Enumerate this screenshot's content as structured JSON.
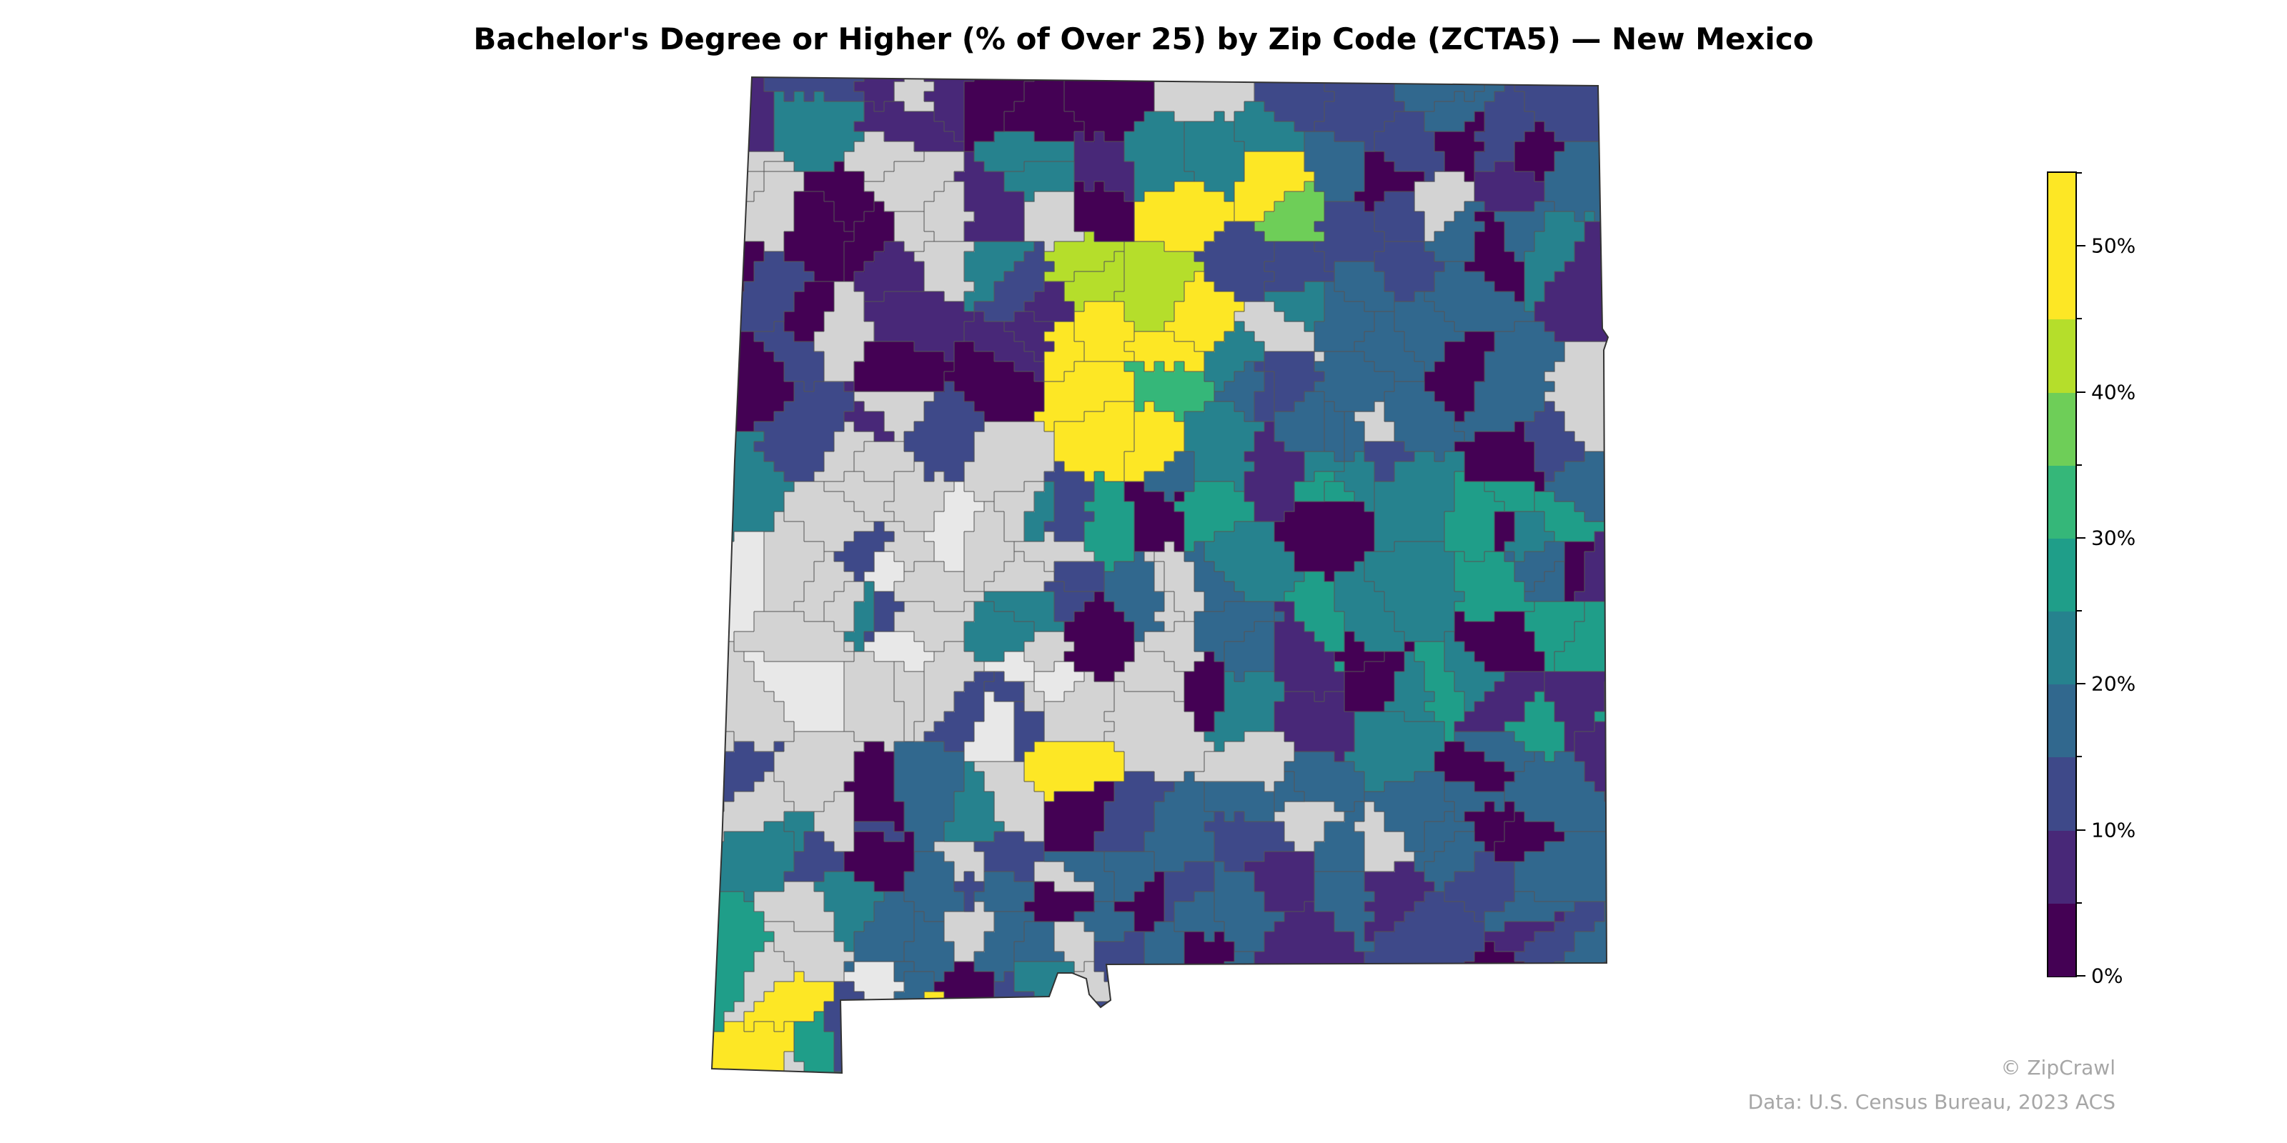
{
  "title": "Bachelor's Degree or Higher (% of Over 25) by Zip Code (ZCTA5) — New Mexico",
  "legend": {
    "ticks": [
      "0%",
      "10%",
      "20%",
      "30%",
      "40%",
      "50%"
    ],
    "bins": [
      0,
      5,
      10,
      15,
      20,
      25,
      30,
      35,
      40,
      45,
      50,
      55
    ],
    "colors": [
      "#440154",
      "#482878",
      "#3e4989",
      "#31688e",
      "#26828e",
      "#1f9e89",
      "#35b779",
      "#6ece58",
      "#b5de2b",
      "#fde725"
    ],
    "no_data_color": "#d3d3d3",
    "missing_color": "#e8e8e8"
  },
  "credits": {
    "copyright": "© ZipCrawl",
    "source": "Data: U.S. Census Bureau, 2023 ACS"
  }
}
